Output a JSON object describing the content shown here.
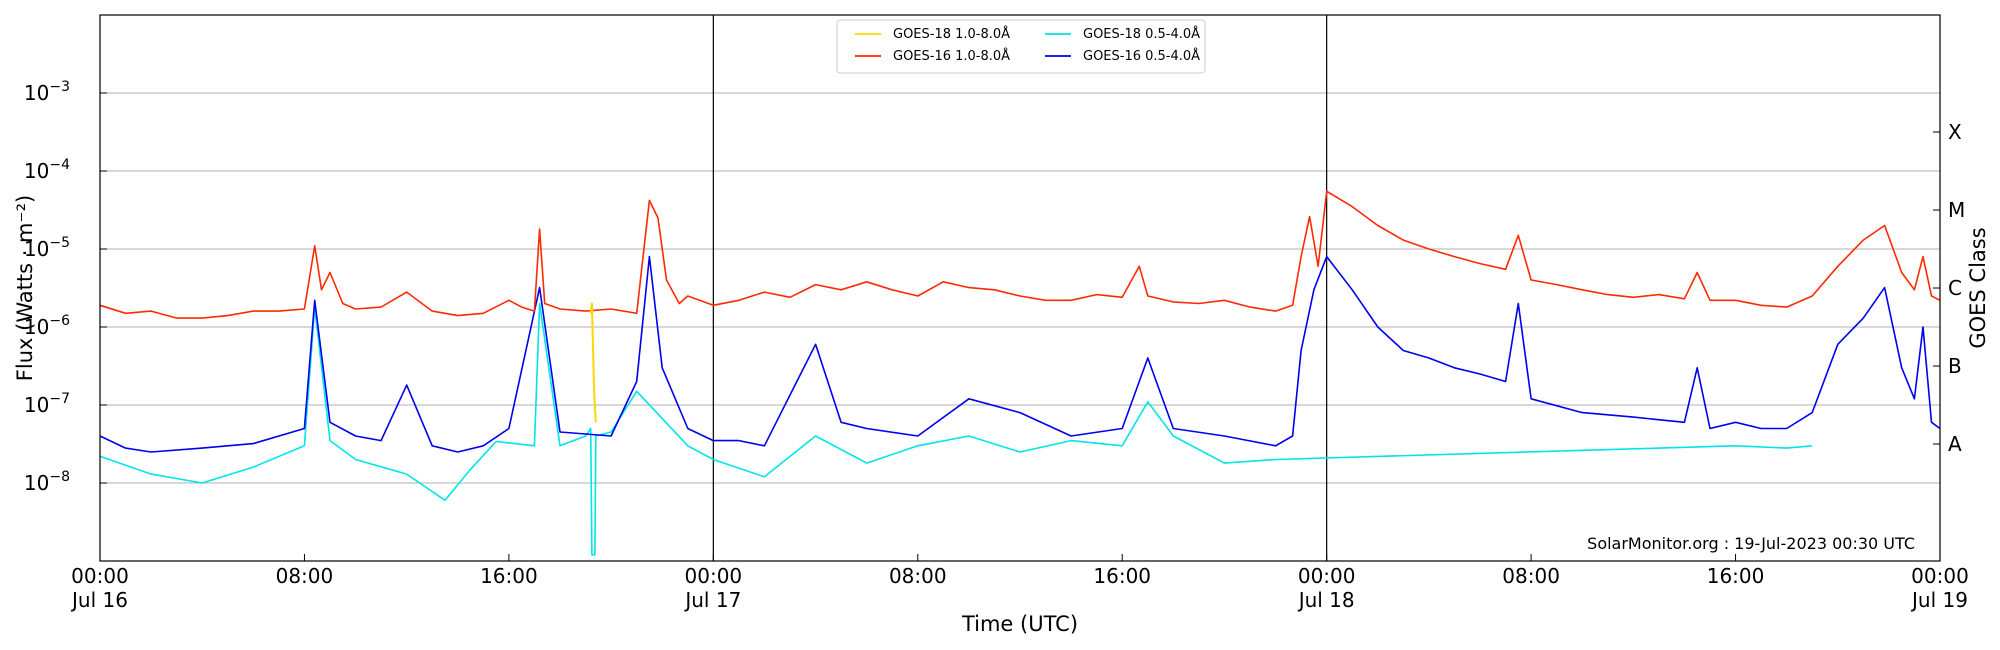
{
  "chart_data": {
    "type": "line",
    "title": "",
    "xlabel": "Time (UTC)",
    "ylabel": "Flux (Watts · m⁻²)",
    "y2label": "GOES Class",
    "yscale": "log",
    "xlim": [
      "2023-07-16 00:00",
      "2023-07-19 00:00"
    ],
    "ylim": [
      1e-09,
      0.01
    ],
    "grid": "horizontal",
    "legend_position": "top-center",
    "x_ticks": [
      {
        "time": "2023-07-16 00:00",
        "line1": "00:00",
        "line2": "Jul 16"
      },
      {
        "time": "2023-07-16 08:00",
        "line1": "08:00",
        "line2": ""
      },
      {
        "time": "2023-07-16 16:00",
        "line1": "16:00",
        "line2": ""
      },
      {
        "time": "2023-07-17 00:00",
        "line1": "00:00",
        "line2": "Jul 17"
      },
      {
        "time": "2023-07-17 08:00",
        "line1": "08:00",
        "line2": ""
      },
      {
        "time": "2023-07-17 16:00",
        "line1": "16:00",
        "line2": ""
      },
      {
        "time": "2023-07-18 00:00",
        "line1": "00:00",
        "line2": "Jul 18"
      },
      {
        "time": "2023-07-18 08:00",
        "line1": "08:00",
        "line2": ""
      },
      {
        "time": "2023-07-18 16:00",
        "line1": "16:00",
        "line2": ""
      },
      {
        "time": "2023-07-19 00:00",
        "line1": "00:00",
        "line2": "Jul 19"
      }
    ],
    "y_ticks": [
      {
        "value": 1e-08,
        "base": "10",
        "exp": "−8"
      },
      {
        "value": 1e-07,
        "base": "10",
        "exp": "−7"
      },
      {
        "value": 1e-06,
        "base": "10",
        "exp": "−6"
      },
      {
        "value": 1e-05,
        "base": "10",
        "exp": "−5"
      },
      {
        "value": 0.0001,
        "base": "10",
        "exp": "−4"
      },
      {
        "value": 0.001,
        "base": "10",
        "exp": "−3"
      }
    ],
    "class_ticks": [
      {
        "label": "A",
        "value": 3.16e-08
      },
      {
        "label": "B",
        "value": 3.16e-07
      },
      {
        "label": "C",
        "value": 3.16e-06
      },
      {
        "label": "M",
        "value": 3.16e-05
      },
      {
        "label": "X",
        "value": 0.000316
      }
    ],
    "day_lines": [
      "2023-07-17 00:00",
      "2023-07-18 00:00"
    ],
    "annotation": "SolarMonitor.org : 19-Jul-2023 00:30 UTC",
    "series": [
      {
        "name": "GOES-18 1.0-8.0Å",
        "color": "#ffd700",
        "points": [
          [
            "2023-07-16 19:12",
            1.5e-06
          ],
          [
            "2023-07-16 19:15",
            2e-06
          ],
          [
            "2023-07-16 19:20",
            1.5e-07
          ],
          [
            "2023-07-16 19:24",
            6e-08
          ]
        ]
      },
      {
        "name": "GOES-16 1.0-8.0Å",
        "color": "#ff2a00",
        "points": [
          [
            "2023-07-16 00:00",
            1.9e-06
          ],
          [
            "2023-07-16 01:00",
            1.5e-06
          ],
          [
            "2023-07-16 02:00",
            1.6e-06
          ],
          [
            "2023-07-16 03:00",
            1.3e-06
          ],
          [
            "2023-07-16 04:00",
            1.3e-06
          ],
          [
            "2023-07-16 05:00",
            1.4e-06
          ],
          [
            "2023-07-16 06:00",
            1.6e-06
          ],
          [
            "2023-07-16 07:00",
            1.6e-06
          ],
          [
            "2023-07-16 08:00",
            1.7e-06
          ],
          [
            "2023-07-16 08:24",
            1.1e-05
          ],
          [
            "2023-07-16 08:40",
            3e-06
          ],
          [
            "2023-07-16 09:00",
            5e-06
          ],
          [
            "2023-07-16 09:30",
            2e-06
          ],
          [
            "2023-07-16 10:00",
            1.7e-06
          ],
          [
            "2023-07-16 11:00",
            1.8e-06
          ],
          [
            "2023-07-16 12:00",
            2.8e-06
          ],
          [
            "2023-07-16 13:00",
            1.6e-06
          ],
          [
            "2023-07-16 14:00",
            1.4e-06
          ],
          [
            "2023-07-16 15:00",
            1.5e-06
          ],
          [
            "2023-07-16 16:00",
            2.2e-06
          ],
          [
            "2023-07-16 16:30",
            1.8e-06
          ],
          [
            "2023-07-16 17:00",
            1.6e-06
          ],
          [
            "2023-07-16 17:12",
            1.8e-05
          ],
          [
            "2023-07-16 17:24",
            2e-06
          ],
          [
            "2023-07-16 18:00",
            1.7e-06
          ],
          [
            "2023-07-16 19:00",
            1.6e-06
          ],
          [
            "2023-07-16 20:00",
            1.7e-06
          ],
          [
            "2023-07-16 21:00",
            1.5e-06
          ],
          [
            "2023-07-16 21:30",
            4.2e-05
          ],
          [
            "2023-07-16 21:50",
            2.5e-05
          ],
          [
            "2023-07-16 22:10",
            4e-06
          ],
          [
            "2023-07-16 22:40",
            2e-06
          ],
          [
            "2023-07-16 23:00",
            2.5e-06
          ],
          [
            "2023-07-17 00:00",
            1.9e-06
          ],
          [
            "2023-07-17 01:00",
            2.2e-06
          ],
          [
            "2023-07-17 02:00",
            2.8e-06
          ],
          [
            "2023-07-17 03:00",
            2.4e-06
          ],
          [
            "2023-07-17 04:00",
            3.5e-06
          ],
          [
            "2023-07-17 05:00",
            3e-06
          ],
          [
            "2023-07-17 06:00",
            3.8e-06
          ],
          [
            "2023-07-17 07:00",
            3e-06
          ],
          [
            "2023-07-17 08:00",
            2.5e-06
          ],
          [
            "2023-07-17 09:00",
            3.8e-06
          ],
          [
            "2023-07-17 10:00",
            3.2e-06
          ],
          [
            "2023-07-17 11:00",
            3e-06
          ],
          [
            "2023-07-17 12:00",
            2.5e-06
          ],
          [
            "2023-07-17 13:00",
            2.2e-06
          ],
          [
            "2023-07-17 14:00",
            2.2e-06
          ],
          [
            "2023-07-17 15:00",
            2.6e-06
          ],
          [
            "2023-07-17 16:00",
            2.4e-06
          ],
          [
            "2023-07-17 16:40",
            6e-06
          ],
          [
            "2023-07-17 17:00",
            2.5e-06
          ],
          [
            "2023-07-17 18:00",
            2.1e-06
          ],
          [
            "2023-07-17 19:00",
            2e-06
          ],
          [
            "2023-07-17 20:00",
            2.2e-06
          ],
          [
            "2023-07-17 21:00",
            1.8e-06
          ],
          [
            "2023-07-17 22:00",
            1.6e-06
          ],
          [
            "2023-07-17 22:40",
            1.9e-06
          ],
          [
            "2023-07-17 23:00",
            8e-06
          ],
          [
            "2023-07-17 23:20",
            2.6e-05
          ],
          [
            "2023-07-17 23:40",
            6e-06
          ],
          [
            "2023-07-18 00:00",
            5.5e-05
          ],
          [
            "2023-07-18 01:00",
            3.5e-05
          ],
          [
            "2023-07-18 02:00",
            2e-05
          ],
          [
            "2023-07-18 03:00",
            1.3e-05
          ],
          [
            "2023-07-18 04:00",
            1e-05
          ],
          [
            "2023-07-18 05:00",
            8e-06
          ],
          [
            "2023-07-18 06:00",
            6.5e-06
          ],
          [
            "2023-07-18 07:00",
            5.5e-06
          ],
          [
            "2023-07-18 07:30",
            1.5e-05
          ],
          [
            "2023-07-18 08:00",
            4e-06
          ],
          [
            "2023-07-18 09:00",
            3.5e-06
          ],
          [
            "2023-07-18 10:00",
            3e-06
          ],
          [
            "2023-07-18 11:00",
            2.6e-06
          ],
          [
            "2023-07-18 12:00",
            2.4e-06
          ],
          [
            "2023-07-18 13:00",
            2.6e-06
          ],
          [
            "2023-07-18 14:00",
            2.3e-06
          ],
          [
            "2023-07-18 14:30",
            5e-06
          ],
          [
            "2023-07-18 15:00",
            2.2e-06
          ],
          [
            "2023-07-18 16:00",
            2.2e-06
          ],
          [
            "2023-07-18 17:00",
            1.9e-06
          ],
          [
            "2023-07-18 18:00",
            1.8e-06
          ],
          [
            "2023-07-18 19:00",
            2.5e-06
          ],
          [
            "2023-07-18 20:00",
            6e-06
          ],
          [
            "2023-07-18 21:00",
            1.3e-05
          ],
          [
            "2023-07-18 21:50",
            2e-05
          ],
          [
            "2023-07-18 22:30",
            5e-06
          ],
          [
            "2023-07-18 23:00",
            3e-06
          ],
          [
            "2023-07-18 23:20",
            8e-06
          ],
          [
            "2023-07-18 23:40",
            2.5e-06
          ],
          [
            "2023-07-19 00:00",
            2.2e-06
          ]
        ]
      },
      {
        "name": "GOES-18 0.5-4.0Å",
        "color": "#00e5e5",
        "points": [
          [
            "2023-07-16 00:00",
            2.2e-08
          ],
          [
            "2023-07-16 02:00",
            1.3e-08
          ],
          [
            "2023-07-16 04:00",
            1e-08
          ],
          [
            "2023-07-16 06:00",
            1.6e-08
          ],
          [
            "2023-07-16 08:00",
            3e-08
          ],
          [
            "2023-07-16 08:24",
            1.8e-06
          ],
          [
            "2023-07-16 09:00",
            3.5e-08
          ],
          [
            "2023-07-16 10:00",
            2e-08
          ],
          [
            "2023-07-16 12:00",
            1.3e-08
          ],
          [
            "2023-07-16 13:30",
            6e-09
          ],
          [
            "2023-07-16 14:30",
            1.5e-08
          ],
          [
            "2023-07-16 15:30",
            3.4e-08
          ],
          [
            "2023-07-16 17:00",
            3e-08
          ],
          [
            "2023-07-16 17:12",
            2e-06
          ],
          [
            "2023-07-16 18:00",
            3e-08
          ],
          [
            "2023-07-16 19:00",
            4e-08
          ],
          [
            "2023-07-16 19:12",
            5e-08
          ],
          [
            "2023-07-16 19:15",
            1.2e-09
          ],
          [
            "2023-07-16 19:22",
            1.2e-09
          ],
          [
            "2023-07-16 19:24",
            4e-08
          ],
          [
            "2023-07-16 20:00",
            4.5e-08
          ],
          [
            "2023-07-16 21:00",
            1.5e-07
          ],
          [
            "2023-07-16 23:00",
            3e-08
          ],
          [
            "2023-07-17 00:00",
            2e-08
          ],
          [
            "2023-07-17 02:00",
            1.2e-08
          ],
          [
            "2023-07-17 04:00",
            4e-08
          ],
          [
            "2023-07-17 06:00",
            1.8e-08
          ],
          [
            "2023-07-17 08:00",
            3e-08
          ],
          [
            "2023-07-17 10:00",
            4e-08
          ],
          [
            "2023-07-17 12:00",
            2.5e-08
          ],
          [
            "2023-07-17 14:00",
            3.5e-08
          ],
          [
            "2023-07-17 16:00",
            3e-08
          ],
          [
            "2023-07-17 17:00",
            1.1e-07
          ],
          [
            "2023-07-17 18:00",
            4e-08
          ],
          [
            "2023-07-17 20:00",
            1.8e-08
          ],
          [
            "2023-07-17 22:00",
            2e-08
          ],
          [
            "2023-07-18 16:00",
            3e-08
          ],
          [
            "2023-07-18 18:00",
            2.8e-08
          ],
          [
            "2023-07-18 19:00",
            3e-08
          ]
        ]
      },
      {
        "name": "GOES-16 0.5-4.0Å",
        "color": "#0000ee",
        "points": [
          [
            "2023-07-16 00:00",
            4e-08
          ],
          [
            "2023-07-16 01:00",
            2.8e-08
          ],
          [
            "2023-07-16 02:00",
            2.5e-08
          ],
          [
            "2023-07-16 04:00",
            2.8e-08
          ],
          [
            "2023-07-16 06:00",
            3.2e-08
          ],
          [
            "2023-07-16 08:00",
            5e-08
          ],
          [
            "2023-07-16 08:24",
            2.2e-06
          ],
          [
            "2023-07-16 09:00",
            6e-08
          ],
          [
            "2023-07-16 10:00",
            4e-08
          ],
          [
            "2023-07-16 11:00",
            3.5e-08
          ],
          [
            "2023-07-16 12:00",
            1.8e-07
          ],
          [
            "2023-07-16 13:00",
            3e-08
          ],
          [
            "2023-07-16 14:00",
            2.5e-08
          ],
          [
            "2023-07-16 15:00",
            3e-08
          ],
          [
            "2023-07-16 16:00",
            5e-08
          ],
          [
            "2023-07-16 17:12",
            3.2e-06
          ],
          [
            "2023-07-16 18:00",
            4.5e-08
          ],
          [
            "2023-07-16 20:00",
            4e-08
          ],
          [
            "2023-07-16 21:00",
            2e-07
          ],
          [
            "2023-07-16 21:30",
            8e-06
          ],
          [
            "2023-07-16 22:00",
            3e-07
          ],
          [
            "2023-07-16 23:00",
            5e-08
          ],
          [
            "2023-07-17 00:00",
            3.5e-08
          ],
          [
            "2023-07-17 01:00",
            3.5e-08
          ],
          [
            "2023-07-17 02:00",
            3e-08
          ],
          [
            "2023-07-17 04:00",
            6e-07
          ],
          [
            "2023-07-17 05:00",
            6e-08
          ],
          [
            "2023-07-17 06:00",
            5e-08
          ],
          [
            "2023-07-17 08:00",
            4e-08
          ],
          [
            "2023-07-17 10:00",
            1.2e-07
          ],
          [
            "2023-07-17 12:00",
            8e-08
          ],
          [
            "2023-07-17 14:00",
            4e-08
          ],
          [
            "2023-07-17 16:00",
            5e-08
          ],
          [
            "2023-07-17 17:00",
            4e-07
          ],
          [
            "2023-07-17 18:00",
            5e-08
          ],
          [
            "2023-07-17 20:00",
            4e-08
          ],
          [
            "2023-07-17 22:00",
            3e-08
          ],
          [
            "2023-07-17 22:40",
            4e-08
          ],
          [
            "2023-07-17 23:00",
            5e-07
          ],
          [
            "2023-07-17 23:30",
            3e-06
          ],
          [
            "2023-07-18 00:00",
            8e-06
          ],
          [
            "2023-07-18 01:00",
            3e-06
          ],
          [
            "2023-07-18 02:00",
            1e-06
          ],
          [
            "2023-07-18 03:00",
            5e-07
          ],
          [
            "2023-07-18 04:00",
            4e-07
          ],
          [
            "2023-07-18 05:00",
            3e-07
          ],
          [
            "2023-07-18 06:00",
            2.5e-07
          ],
          [
            "2023-07-18 07:00",
            2e-07
          ],
          [
            "2023-07-18 07:30",
            2e-06
          ],
          [
            "2023-07-18 08:00",
            1.2e-07
          ],
          [
            "2023-07-18 10:00",
            8e-08
          ],
          [
            "2023-07-18 12:00",
            7e-08
          ],
          [
            "2023-07-18 14:00",
            6e-08
          ],
          [
            "2023-07-18 14:30",
            3e-07
          ],
          [
            "2023-07-18 15:00",
            5e-08
          ],
          [
            "2023-07-18 16:00",
            6e-08
          ],
          [
            "2023-07-18 17:00",
            5e-08
          ],
          [
            "2023-07-18 18:00",
            5e-08
          ],
          [
            "2023-07-18 19:00",
            8e-08
          ],
          [
            "2023-07-18 20:00",
            6e-07
          ],
          [
            "2023-07-18 21:00",
            1.3e-06
          ],
          [
            "2023-07-18 21:50",
            3.2e-06
          ],
          [
            "2023-07-18 22:30",
            3e-07
          ],
          [
            "2023-07-18 23:00",
            1.2e-07
          ],
          [
            "2023-07-18 23:20",
            1e-06
          ],
          [
            "2023-07-18 23:40",
            6e-08
          ],
          [
            "2023-07-19 00:00",
            5e-08
          ]
        ]
      }
    ]
  }
}
